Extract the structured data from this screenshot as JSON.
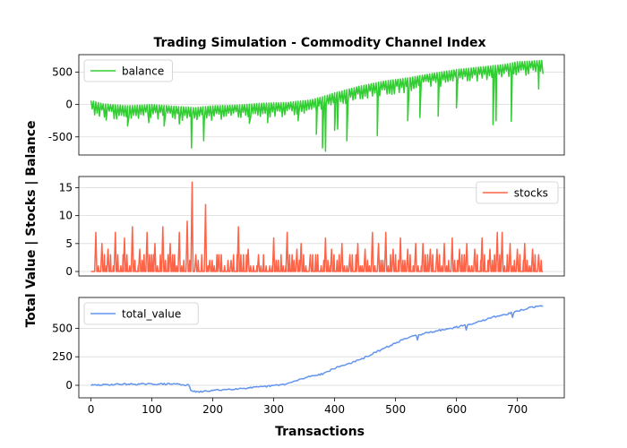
{
  "chart_data": {
    "type": "line",
    "title": "Trading Simulation - Commodity Channel Index",
    "xlabel": "Transactions",
    "ylabel": "Total Value | Stocks | Balance",
    "x_ticks": [
      0,
      100,
      200,
      300,
      400,
      500,
      600,
      700
    ],
    "grid": "horizontal",
    "panels": [
      {
        "series_name": "balance",
        "color": "#32cd32",
        "legend_position": "upper-left",
        "xlim": [
          -20,
          777
        ],
        "ylim": [
          -780,
          770
        ],
        "y_ticks": [
          -500,
          0,
          500
        ],
        "anchors": [
          [
            0,
            0
          ],
          [
            20,
            -50
          ],
          [
            60,
            -80
          ],
          [
            100,
            -60
          ],
          [
            140,
            -90
          ],
          [
            160,
            -100
          ],
          [
            170,
            -110
          ],
          [
            180,
            -100
          ],
          [
            200,
            -80
          ],
          [
            240,
            -70
          ],
          [
            280,
            -40
          ],
          [
            320,
            -30
          ],
          [
            360,
            10
          ],
          [
            380,
            60
          ],
          [
            400,
            120
          ],
          [
            440,
            220
          ],
          [
            480,
            300
          ],
          [
            520,
            350
          ],
          [
            560,
            420
          ],
          [
            600,
            480
          ],
          [
            640,
            520
          ],
          [
            680,
            560
          ],
          [
            700,
            600
          ],
          [
            740,
            620
          ]
        ],
        "spikes": [
          [
            25,
            -240
          ],
          [
            60,
            -330
          ],
          [
            95,
            -280
          ],
          [
            120,
            -330
          ],
          [
            145,
            -300
          ],
          [
            165,
            -670
          ],
          [
            185,
            -560
          ],
          [
            260,
            -290
          ],
          [
            290,
            -280
          ],
          [
            340,
            -250
          ],
          [
            370,
            -460
          ],
          [
            380,
            -670
          ],
          [
            385,
            -720
          ],
          [
            400,
            -400
          ],
          [
            405,
            -380
          ],
          [
            420,
            -560
          ],
          [
            470,
            -480
          ],
          [
            520,
            -250
          ],
          [
            540,
            -200
          ],
          [
            570,
            -180
          ],
          [
            600,
            -50
          ],
          [
            660,
            -310
          ],
          [
            665,
            -250
          ],
          [
            690,
            -260
          ],
          [
            735,
            240
          ]
        ]
      },
      {
        "series_name": "stocks",
        "color": "#ff6347",
        "legend_position": "upper-right",
        "xlim": [
          -20,
          777
        ],
        "ylim": [
          -0.8,
          17
        ],
        "y_ticks": [
          0,
          5,
          10,
          15
        ],
        "peaks": [
          [
            8,
            7
          ],
          [
            18,
            5
          ],
          [
            28,
            4
          ],
          [
            40,
            7
          ],
          [
            55,
            6
          ],
          [
            68,
            8
          ],
          [
            80,
            4
          ],
          [
            92,
            7
          ],
          [
            105,
            5
          ],
          [
            118,
            8
          ],
          [
            130,
            5
          ],
          [
            145,
            7
          ],
          [
            158,
            9
          ],
          [
            166,
            16
          ],
          [
            172,
            3
          ],
          [
            188,
            12
          ],
          [
            195,
            2
          ],
          [
            210,
            3
          ],
          [
            230,
            2
          ],
          [
            242,
            8
          ],
          [
            258,
            4
          ],
          [
            275,
            3
          ],
          [
            300,
            6
          ],
          [
            322,
            7
          ],
          [
            338,
            4
          ],
          [
            345,
            5
          ],
          [
            360,
            3
          ],
          [
            385,
            6
          ],
          [
            395,
            4
          ],
          [
            412,
            5
          ],
          [
            425,
            3
          ],
          [
            438,
            5
          ],
          [
            450,
            4
          ],
          [
            462,
            7
          ],
          [
            472,
            5
          ],
          [
            484,
            7
          ],
          [
            496,
            4
          ],
          [
            508,
            6
          ],
          [
            520,
            4
          ],
          [
            533,
            5
          ],
          [
            545,
            5
          ],
          [
            557,
            4
          ],
          [
            568,
            4
          ],
          [
            580,
            5
          ],
          [
            593,
            6
          ],
          [
            605,
            4
          ],
          [
            617,
            5
          ],
          [
            630,
            4
          ],
          [
            642,
            6
          ],
          [
            655,
            4
          ],
          [
            667,
            7
          ],
          [
            675,
            7
          ],
          [
            688,
            5
          ],
          [
            700,
            4
          ],
          [
            712,
            5
          ],
          [
            725,
            4
          ],
          [
            735,
            3
          ]
        ]
      },
      {
        "series_name": "total_value",
        "color": "#6495ed",
        "legend_position": "upper-left",
        "xlim": [
          -20,
          777
        ],
        "ylim": [
          -110,
          770
        ],
        "y_ticks": [
          0,
          250,
          500
        ],
        "anchors": [
          [
            0,
            0
          ],
          [
            50,
            10
          ],
          [
            100,
            10
          ],
          [
            140,
            12
          ],
          [
            160,
            0
          ],
          [
            165,
            -50
          ],
          [
            175,
            -60
          ],
          [
            200,
            -45
          ],
          [
            240,
            -30
          ],
          [
            280,
            -15
          ],
          [
            320,
            10
          ],
          [
            360,
            80
          ],
          [
            380,
            100
          ],
          [
            400,
            150
          ],
          [
            440,
            220
          ],
          [
            480,
            320
          ],
          [
            520,
            420
          ],
          [
            560,
            470
          ],
          [
            600,
            510
          ],
          [
            640,
            560
          ],
          [
            660,
            600
          ],
          [
            680,
            620
          ],
          [
            700,
            650
          ],
          [
            720,
            680
          ],
          [
            742,
            700
          ]
        ]
      }
    ]
  }
}
